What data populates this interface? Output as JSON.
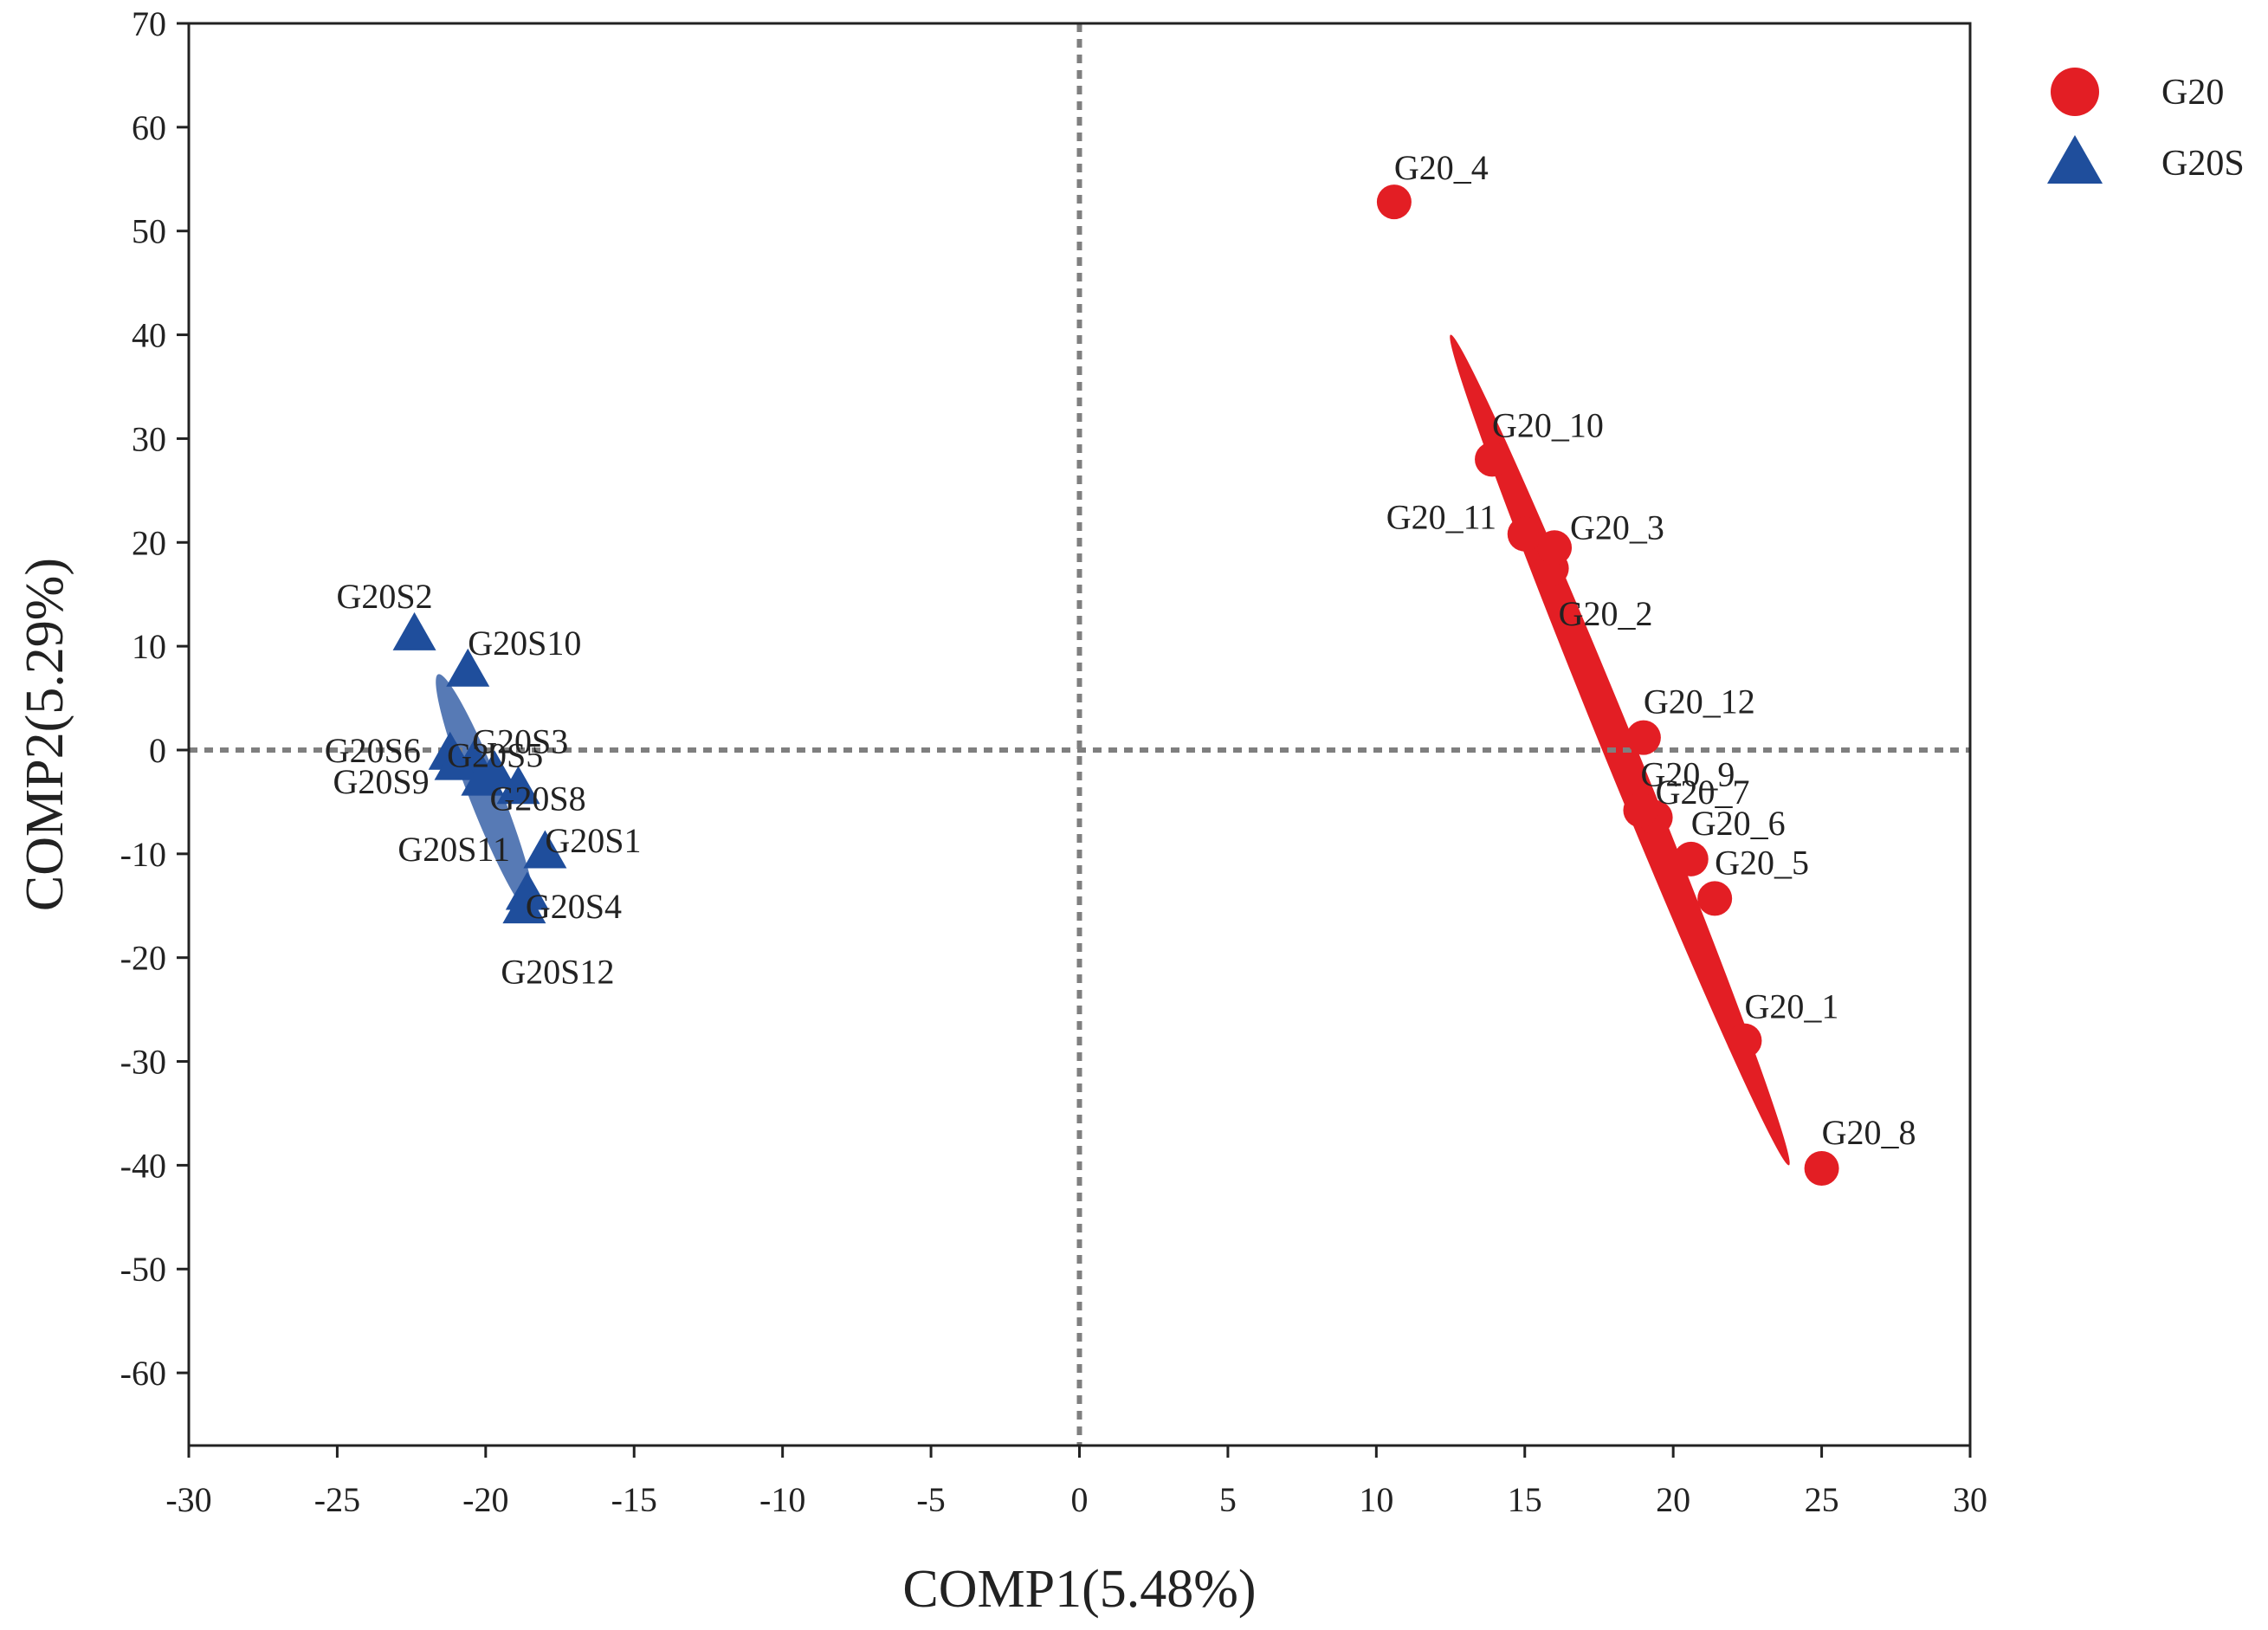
{
  "chart_data": {
    "type": "scatter",
    "title": "",
    "xlabel": "COMP1(5.48%)",
    "ylabel": "COMP2(5.29%)",
    "xlim": [
      -30,
      30
    ],
    "ylim": [
      -67,
      70
    ],
    "xticks": [
      -30,
      -25,
      -20,
      -15,
      -10,
      -5,
      0,
      5,
      10,
      15,
      20,
      25,
      30
    ],
    "yticks": [
      70,
      60,
      50,
      40,
      30,
      20,
      10,
      0,
      -10,
      -20,
      -30,
      -40,
      -50,
      -60
    ],
    "xtick_labels": [
      "-30",
      "-25",
      "-20",
      "-15",
      "-10",
      "-5",
      "0",
      "5",
      "10",
      "15",
      "20",
      "25",
      "30"
    ],
    "ytick_labels": [
      "70",
      "60",
      "50",
      "40",
      "30",
      "20",
      "10",
      "0",
      "-10",
      "-20",
      "-30",
      "-40",
      "-50",
      "-60"
    ],
    "reference_lines": {
      "x": 0,
      "y": 0,
      "style": "dotted",
      "color": "#7f7f7f"
    },
    "legend": {
      "position": "top-right",
      "entries": [
        "G20",
        "G20S"
      ]
    },
    "series": [
      {
        "name": "G20",
        "marker": "circle",
        "color": "#e31e24",
        "ellipse": {
          "center": [
            18.2,
            0.0
          ],
          "end1": [
            12.5,
            40.0
          ],
          "end2": [
            23.9,
            -40.0
          ],
          "half_width": 0.55
        },
        "points": [
          {
            "label": "G20_1",
            "x": 22.4,
            "y": -28.0
          },
          {
            "label": "G20_2",
            "x": 15.9,
            "y": 17.5
          },
          {
            "label": "G20_3",
            "x": 16.0,
            "y": 19.5
          },
          {
            "label": "G20_4",
            "x": 10.6,
            "y": 52.8
          },
          {
            "label": "G20_5",
            "x": 21.4,
            "y": -14.3
          },
          {
            "label": "G20_6",
            "x": 20.6,
            "y": -10.5
          },
          {
            "label": "G20_7",
            "x": 19.4,
            "y": -6.5
          },
          {
            "label": "G20_8",
            "x": 25.0,
            "y": -40.3
          },
          {
            "label": "G20_9",
            "x": 18.9,
            "y": -5.8
          },
          {
            "label": "G20_10",
            "x": 13.9,
            "y": 28.0
          },
          {
            "label": "G20_11",
            "x": 15.0,
            "y": 20.8
          },
          {
            "label": "G20_12",
            "x": 19.0,
            "y": 1.2
          }
        ]
      },
      {
        "name": "G20S",
        "marker": "triangle",
        "color": "#1f4e9c",
        "ellipse": {
          "center": [
            -19.8,
            -3.5
          ],
          "end1": [
            -21.6,
            7.3
          ],
          "end2": [
            -18.4,
            -16.0
          ],
          "half_width": 0.55
        },
        "points": [
          {
            "label": "G20S1",
            "x": -18.0,
            "y": -10.0
          },
          {
            "label": "G20S2",
            "x": -22.4,
            "y": 11.0
          },
          {
            "label": "G20S3",
            "x": -20.4,
            "y": -1.3
          },
          {
            "label": "G20S4",
            "x": -18.6,
            "y": -14.0
          },
          {
            "label": "G20S5",
            "x": -19.7,
            "y": -2.3
          },
          {
            "label": "G20S6",
            "x": -21.2,
            "y": -0.5
          },
          {
            "label": "G20S8",
            "x": -18.9,
            "y": -3.8
          },
          {
            "label": "G20S9",
            "x": -21.0,
            "y": -1.5
          },
          {
            "label": "G20S10",
            "x": -20.6,
            "y": 7.5
          },
          {
            "label": "G20S11",
            "x": -20.1,
            "y": -3.0
          },
          {
            "label": "G20S12",
            "x": -18.7,
            "y": -15.3
          }
        ]
      }
    ]
  }
}
